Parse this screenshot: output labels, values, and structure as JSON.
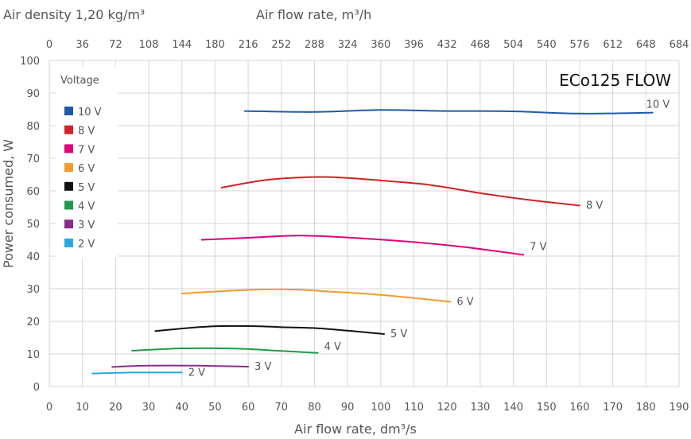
{
  "chart_data": {
    "type": "line",
    "title": "ECo125 FLOW",
    "header_left": "Air density 1,20 kg/m³",
    "top_axis_label": "Air flow rate, m³/h",
    "xlabel": "Air flow rate, dm³/s",
    "ylabel": "Power consumed, W",
    "xlim": [
      0,
      190
    ],
    "ylim": [
      0,
      100
    ],
    "x_ticks": [
      "0",
      "10",
      "20",
      "30",
      "40",
      "50",
      "60",
      "70",
      "80",
      "90",
      "100",
      "110",
      "120",
      "130",
      "140",
      "150",
      "160",
      "170",
      "180",
      "190"
    ],
    "y_ticks": [
      "0",
      "10",
      "20",
      "30",
      "40",
      "50",
      "60",
      "70",
      "80",
      "90",
      "100"
    ],
    "top_ticks": [
      "0",
      "36",
      "72",
      "108",
      "144",
      "180",
      "216",
      "252",
      "288",
      "324",
      "360",
      "396",
      "432",
      "468",
      "504",
      "540",
      "576",
      "612",
      "648",
      "684"
    ],
    "grid": true,
    "legend_title": "Voltage",
    "legend_position": "top-left",
    "series": [
      {
        "name": "10 V",
        "color": "#1f5aa6",
        "label": "10 V",
        "x": [
          59,
          80,
          100,
          120,
          140,
          160,
          182
        ],
        "y": [
          84.5,
          84.2,
          84.8,
          84.5,
          84.4,
          83.7,
          84.0
        ]
      },
      {
        "name": "8 V",
        "color": "#d42027",
        "label": "8 V",
        "x": [
          52,
          65,
          78,
          88,
          100,
          115,
          130,
          145,
          160
        ],
        "y": [
          61,
          63.3,
          64.2,
          64.1,
          63.2,
          61.8,
          59.3,
          57.2,
          55.5
        ]
      },
      {
        "name": "7 V",
        "color": "#e2007a",
        "label": "7 V",
        "x": [
          46,
          60,
          75,
          90,
          110,
          125,
          143
        ],
        "y": [
          45,
          45.6,
          46.3,
          45.7,
          44.3,
          42.8,
          40.4
        ]
      },
      {
        "name": "6 V",
        "color": "#f39a2e",
        "label": "6 V",
        "x": [
          40,
          55,
          67,
          75,
          85,
          100,
          121
        ],
        "y": [
          28.5,
          29.4,
          29.8,
          29.7,
          29.1,
          28.1,
          26.0
        ]
      },
      {
        "name": "5 V",
        "color": "#111111",
        "label": "5 V",
        "x": [
          32,
          48,
          62,
          70,
          82,
          101
        ],
        "y": [
          17.0,
          18.4,
          18.5,
          18.2,
          17.8,
          16.1
        ]
      },
      {
        "name": "4 V",
        "color": "#1f9a4a",
        "label": "4 V",
        "x": [
          25,
          40,
          52,
          60,
          70,
          81
        ],
        "y": [
          11.0,
          11.7,
          11.7,
          11.5,
          10.9,
          10.3
        ]
      },
      {
        "name": "3 V",
        "color": "#8c2a8c",
        "label": "3 V",
        "x": [
          19,
          30,
          45,
          60
        ],
        "y": [
          6.0,
          6.4,
          6.4,
          6.1
        ]
      },
      {
        "name": "2 V",
        "color": "#2aa8e0",
        "label": "2 V",
        "x": [
          13,
          25,
          35,
          40
        ],
        "y": [
          4.0,
          4.3,
          4.3,
          4.3
        ]
      }
    ]
  }
}
